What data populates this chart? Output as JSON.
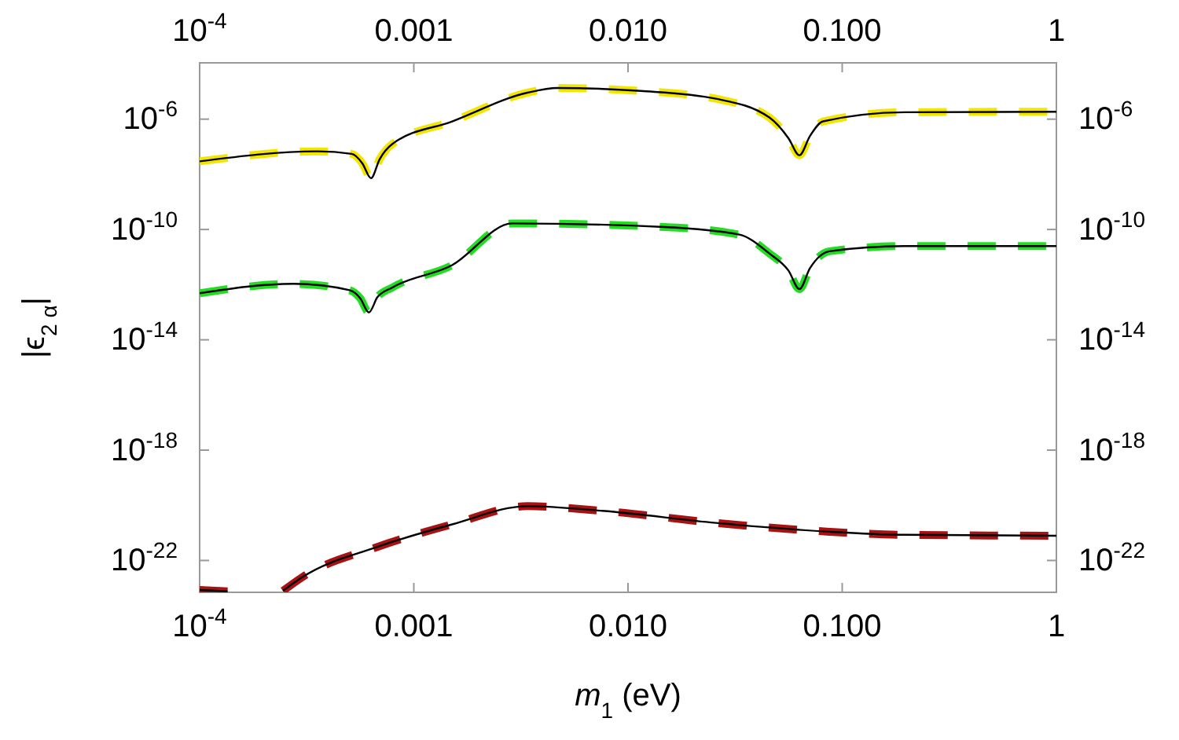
{
  "chart_data": {
    "type": "line",
    "xlabel": "m$_{1}$ (eV)",
    "ylabel": "|ϵ$_{2 α}$|",
    "log": "xy",
    "grid": false,
    "xlim": [
      0.0001,
      1
    ],
    "ylim": [
      7e-24,
      0.00011
    ],
    "xticks": [
      {
        "value": 0.0001,
        "label": "10$^{-4}$"
      },
      {
        "value": 0.001,
        "label": "0.001"
      },
      {
        "value": 0.01,
        "label": "0.010"
      },
      {
        "value": 0.1,
        "label": "0.100"
      },
      {
        "value": 1,
        "label": "1"
      }
    ],
    "yticks": [
      {
        "value": 1e-06,
        "label": "10$^{-6}$"
      },
      {
        "value": 1e-10,
        "label": "10$^{-10}$"
      },
      {
        "value": 1e-14,
        "label": "10$^{-14}$"
      },
      {
        "value": 1e-18,
        "label": "10$^{-18}$"
      },
      {
        "value": 1e-22,
        "label": "10$^{-22}$"
      }
    ],
    "series": [
      {
        "color": "#f2e600",
        "line_style": "dashed",
        "x": [
          0.0001,
          0.000355,
          0.000513,
          0.000575,
          0.000631,
          0.000692,
          0.000794,
          0.00151,
          0.00339,
          0.00468,
          0.0115,
          0.0257,
          0.0457,
          0.0562,
          0.0631,
          0.0708,
          0.0813,
          0.195,
          1
        ],
        "values": [
          2.95e-08,
          6.8e-08,
          5.5e-08,
          2.5e-08,
          7.2e-09,
          3.5e-08,
          1.26e-07,
          8.3e-07,
          9.1e-06,
          1.35e-05,
          1.05e-05,
          5.5e-06,
          1.15e-06,
          2e-07,
          4.9e-08,
          2.5e-07,
          8.3e-07,
          1.78e-06,
          1.86e-06
        ]
      },
      {
        "color": "#22dd22",
        "line_style": "dashed",
        "x": [
          0.0001,
          0.000275,
          0.000501,
          0.000562,
          0.000617,
          0.000676,
          0.000794,
          0.00151,
          0.00288,
          0.0148,
          0.0331,
          0.0457,
          0.0562,
          0.0631,
          0.0708,
          0.0871,
          0.195,
          1
        ],
        "values": [
          4.9e-13,
          1.07e-12,
          6.3e-13,
          3.2e-13,
          9.8e-14,
          3.5e-13,
          7.9e-13,
          5.1e-12,
          1.66e-10,
          1.23e-10,
          6.5e-11,
          1.35e-11,
          3.2e-12,
          6.9e-13,
          4e-12,
          1.62e-11,
          2.5e-11,
          2.5e-11
        ]
      },
      {
        "color": "#aa1111",
        "line_style": "dashed",
        "x": [
          0.0001,
          0.000135,
          0.000178,
          0.000245,
          0.000302,
          0.000676,
          0.00151,
          0.00339,
          0.00759,
          0.0257,
          0.0871,
          0.195,
          1
        ],
        "values": [
          8.5e-24,
          7.6e-24,
          null,
          7.9e-24,
          2.5e-23,
          3.1e-22,
          2.04e-21,
          9.3e-21,
          6.3e-21,
          2.3e-21,
          1.1e-21,
          8.5e-22,
          7.9e-22
        ]
      },
      {
        "color": "#000000",
        "line_style": "solid",
        "x": [
          0.0001,
          0.000355,
          0.000513,
          0.000575,
          0.000631,
          0.000692,
          0.000794,
          0.00151,
          0.00339,
          0.00468,
          0.0115,
          0.0257,
          0.0457,
          0.0562,
          0.0631,
          0.0708,
          0.0813,
          0.195,
          1
        ],
        "values": [
          2.95e-08,
          6.8e-08,
          5.5e-08,
          2.5e-08,
          7.2e-09,
          3.5e-08,
          1.26e-07,
          8.3e-07,
          9.1e-06,
          1.35e-05,
          1.05e-05,
          5.5e-06,
          1.15e-06,
          2e-07,
          4.9e-08,
          2.5e-07,
          8.3e-07,
          1.78e-06,
          1.86e-06
        ]
      },
      {
        "color": "#000000",
        "line_style": "solid",
        "x": [
          0.0001,
          0.000275,
          0.000501,
          0.000562,
          0.000617,
          0.000676,
          0.000794,
          0.00151,
          0.00288,
          0.0148,
          0.0331,
          0.0457,
          0.0562,
          0.0631,
          0.0708,
          0.0871,
          0.195,
          1
        ],
        "values": [
          4.9e-13,
          1.07e-12,
          6.3e-13,
          3.2e-13,
          9.8e-14,
          3.5e-13,
          7.9e-13,
          5.1e-12,
          1.66e-10,
          1.23e-10,
          6.5e-11,
          1.35e-11,
          3.2e-12,
          6.9e-13,
          4e-12,
          1.62e-11,
          2.5e-11,
          2.5e-11
        ]
      },
      {
        "color": "#000000",
        "line_style": "solid",
        "x": [
          0.0001,
          0.000135,
          0.000178,
          0.000245,
          0.000302,
          0.000676,
          0.00151,
          0.00339,
          0.00759,
          0.0257,
          0.0871,
          0.195,
          1
        ],
        "values": [
          8.5e-24,
          7.6e-24,
          null,
          7.9e-24,
          2.5e-23,
          3.1e-22,
          2.04e-21,
          9.3e-21,
          6.3e-21,
          2.3e-21,
          1.1e-21,
          8.5e-22,
          7.9e-22
        ]
      }
    ]
  }
}
